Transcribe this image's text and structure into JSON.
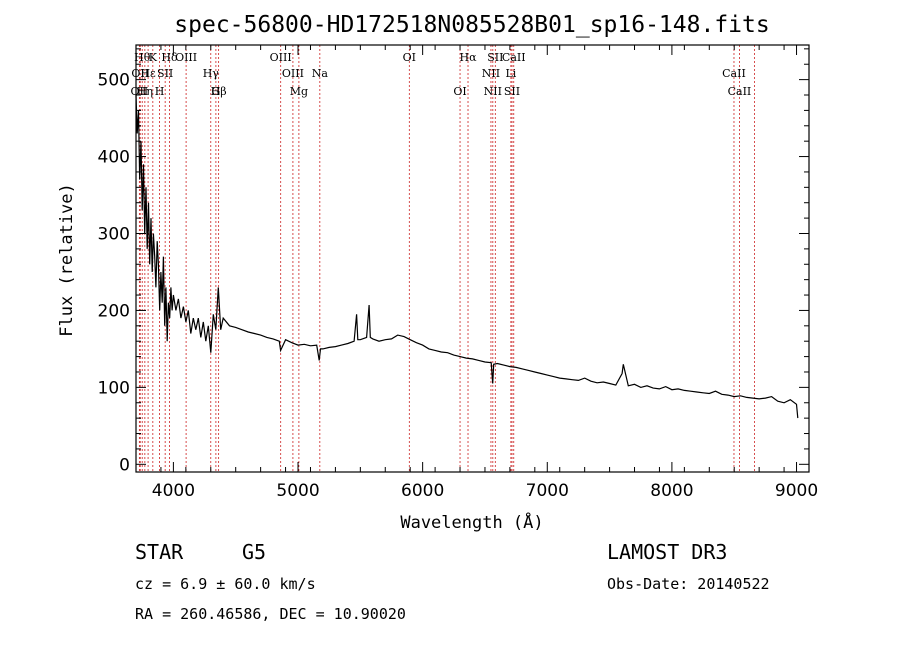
{
  "chart_data": {
    "type": "line",
    "title": "spec-56800-HD172518N085528B01_sp16-148.fits",
    "xlabel": "Wavelength (Å)",
    "ylabel": "Flux (relative)",
    "xlim": [
      3700,
      9100
    ],
    "ylim": [
      -10,
      545
    ],
    "x_ticks": [
      4000,
      5000,
      6000,
      7000,
      8000,
      9000
    ],
    "y_ticks": [
      0,
      100,
      200,
      300,
      400,
      500
    ],
    "series": [
      {
        "name": "flux",
        "x": [
          3700,
          3710,
          3720,
          3730,
          3740,
          3750,
          3760,
          3770,
          3780,
          3790,
          3800,
          3810,
          3820,
          3830,
          3840,
          3850,
          3860,
          3870,
          3880,
          3890,
          3900,
          3910,
          3920,
          3930,
          3940,
          3950,
          3960,
          3970,
          3980,
          3990,
          4000,
          4020,
          4040,
          4060,
          4080,
          4100,
          4120,
          4140,
          4160,
          4180,
          4200,
          4220,
          4240,
          4260,
          4280,
          4300,
          4320,
          4340,
          4360,
          4380,
          4400,
          4450,
          4500,
          4550,
          4600,
          4650,
          4700,
          4750,
          4800,
          4850,
          4860,
          4900,
          4950,
          5000,
          5050,
          5100,
          5150,
          5170,
          5180,
          5200,
          5250,
          5300,
          5350,
          5400,
          5450,
          5470,
          5480,
          5500,
          5550,
          5570,
          5580,
          5600,
          5650,
          5700,
          5750,
          5800,
          5850,
          5900,
          5950,
          6000,
          6050,
          6100,
          6150,
          6200,
          6250,
          6300,
          6350,
          6400,
          6450,
          6500,
          6550,
          6562,
          6570,
          6600,
          6650,
          6700,
          6750,
          6800,
          6850,
          6900,
          6950,
          7000,
          7050,
          7100,
          7150,
          7200,
          7250,
          7300,
          7350,
          7400,
          7450,
          7500,
          7550,
          7600,
          7610,
          7650,
          7700,
          7750,
          7800,
          7850,
          7900,
          7950,
          8000,
          8050,
          8100,
          8150,
          8200,
          8250,
          8300,
          8350,
          8400,
          8450,
          8500,
          8550,
          8600,
          8650,
          8700,
          8750,
          8800,
          8850,
          8900,
          8950,
          9000,
          9010
        ],
        "y": [
          480,
          430,
          460,
          370,
          420,
          330,
          390,
          300,
          360,
          280,
          340,
          260,
          320,
          250,
          300,
          270,
          230,
          290,
          260,
          200,
          250,
          210,
          270,
          180,
          230,
          160,
          210,
          190,
          230,
          200,
          220,
          200,
          215,
          190,
          205,
          185,
          200,
          170,
          190,
          175,
          190,
          165,
          185,
          160,
          180,
          145,
          195,
          175,
          230,
          175,
          190,
          180,
          178,
          175,
          172,
          170,
          168,
          165,
          163,
          160,
          148,
          162,
          158,
          155,
          156,
          154,
          155,
          135,
          150,
          150,
          152,
          153,
          155,
          157,
          160,
          195,
          162,
          162,
          165,
          207,
          165,
          163,
          160,
          162,
          163,
          168,
          166,
          162,
          158,
          155,
          150,
          148,
          146,
          145,
          142,
          140,
          138,
          137,
          135,
          133,
          132,
          105,
          130,
          131,
          129,
          127,
          126,
          124,
          122,
          120,
          118,
          116,
          114,
          112,
          111,
          110,
          109,
          112,
          108,
          106,
          107,
          105,
          103,
          118,
          130,
          102,
          104,
          100,
          102,
          99,
          98,
          101,
          97,
          98,
          96,
          95,
          94,
          93,
          92,
          95,
          91,
          90,
          88,
          89,
          87,
          86,
          85,
          86,
          88,
          82,
          80,
          84,
          78,
          60
        ]
      }
    ],
    "line_markers": [
      {
        "wavelength": 3727,
        "label": "OII",
        "row": 2
      },
      {
        "wavelength": 3734,
        "label": "OII",
        "row": 1
      },
      {
        "wavelength": 3750,
        "label": "Hθ",
        "row": 0
      },
      {
        "wavelength": 3771,
        "label": "Hη",
        "row": 2
      },
      {
        "wavelength": 3797,
        "label": "Hε",
        "row": 1
      },
      {
        "wavelength": 3835,
        "label": "K",
        "row": 0
      },
      {
        "wavelength": 3889,
        "label": "H",
        "row": 2
      },
      {
        "wavelength": 3934,
        "label": "SII",
        "row": 1
      },
      {
        "wavelength": 3969,
        "label": "Hδ",
        "row": 0
      },
      {
        "wavelength": 4102,
        "label": "OIII",
        "row": 0
      },
      {
        "wavelength": 4300,
        "label": "Hγ",
        "row": 1
      },
      {
        "wavelength": 4341,
        "label": "G",
        "row": 2
      },
      {
        "wavelength": 4363,
        "label": "Hβ",
        "row": 2
      },
      {
        "wavelength": 4861,
        "label": "OIII",
        "row": 0
      },
      {
        "wavelength": 4959,
        "label": "OIII",
        "row": 1
      },
      {
        "wavelength": 5007,
        "label": "Mg",
        "row": 2
      },
      {
        "wavelength": 5175,
        "label": "Na",
        "row": 1
      },
      {
        "wavelength": 5893,
        "label": "OI",
        "row": 0
      },
      {
        "wavelength": 6300,
        "label": "OI",
        "row": 2
      },
      {
        "wavelength": 6364,
        "label": "Hα",
        "row": 0
      },
      {
        "wavelength": 6548,
        "label": "NII",
        "row": 1
      },
      {
        "wavelength": 6563,
        "label": "NII",
        "row": 2
      },
      {
        "wavelength": 6583,
        "label": "SII",
        "row": 0
      },
      {
        "wavelength": 6708,
        "label": "Li",
        "row": 1
      },
      {
        "wavelength": 6717,
        "label": "SII",
        "row": 2
      },
      {
        "wavelength": 6731,
        "label": "CaII",
        "row": 0
      },
      {
        "wavelength": 8498,
        "label": "CaII",
        "row": 1
      },
      {
        "wavelength": 8542,
        "label": "CaII",
        "row": 2
      },
      {
        "wavelength": 8662,
        "label": "",
        "row": 0
      }
    ]
  },
  "info": {
    "object_class": "STAR",
    "subclass": "G5",
    "cz": "cz = 6.9 ± 60.0 km/s",
    "radec": "RA = 260.46586, DEC =  10.90020",
    "survey": "LAMOST DR3",
    "obs_date": "Obs-Date: 20140522"
  }
}
